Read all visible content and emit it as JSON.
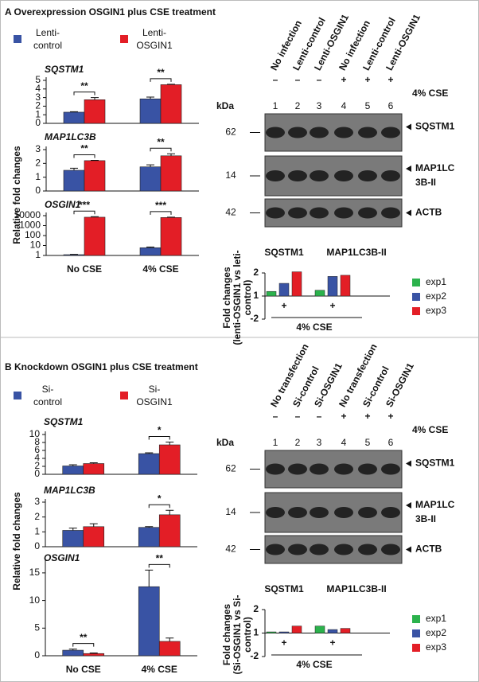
{
  "panels": [
    {
      "title": "A Overexpression OSGIN1 plus CSE treatment",
      "ylabel": "Relative fold changes",
      "blot": {
        "lanes": [
          "No infection",
          "Lenti-control",
          "Lenti-OSGIN1",
          "No infection",
          "Lenti-control",
          "Lenti-OSGIN1"
        ],
        "treatment": [
          "–",
          "–",
          "–",
          "+",
          "+",
          "+"
        ],
        "treatment_label": "4% CSE",
        "lane_numbers": [
          1,
          2,
          3,
          4,
          5,
          6
        ],
        "kda_label": "kDa",
        "rows": [
          {
            "kda": 62,
            "protein": [
              "SQSTM1"
            ]
          },
          {
            "kda": 14,
            "protein": [
              "MAP1LC",
              "3B-II"
            ]
          },
          {
            "kda": 42,
            "protein": [
              "ACTB"
            ]
          }
        ]
      }
    },
    {
      "title": "B Knockdown OSGIN1 plus CSE treatment",
      "ylabel": "Relative fold changes",
      "blot": {
        "lanes": [
          "No transfection",
          "Si-control",
          "Si-OSGIN1",
          "No transfection",
          "Si-control",
          "Si-OSGIN1"
        ],
        "treatment": [
          "–",
          "–",
          "–",
          "+",
          "+",
          "+"
        ],
        "treatment_label": "4% CSE",
        "lane_numbers": [
          1,
          2,
          3,
          4,
          5,
          6
        ],
        "kda_label": "kDa",
        "rows": [
          {
            "kda": 62,
            "protein": [
              "SQSTM1"
            ]
          },
          {
            "kda": 14,
            "protein": [
              "MAP1LC",
              "3B-II"
            ]
          },
          {
            "kda": 42,
            "protein": [
              "ACTB"
            ]
          }
        ]
      }
    }
  ],
  "chart_data": [
    {
      "type": "bar",
      "title": "SQSTM1",
      "categories": [
        null,
        null
      ],
      "ylim": [
        0,
        5
      ],
      "yticks": [
        0,
        1,
        2,
        3,
        4,
        5
      ],
      "series": [
        {
          "name": "Lenti-control",
          "color": "#3953a4",
          "values": [
            1.3,
            2.85
          ],
          "errors": [
            0.05,
            0.2
          ]
        },
        {
          "name": "Lenti-OSGIN1",
          "color": "#e31e26",
          "values": [
            2.75,
            4.5
          ],
          "errors": [
            0.25,
            0.05
          ]
        }
      ],
      "annotations": [
        "**",
        "**"
      ]
    },
    {
      "type": "bar",
      "title": "MAP1LC3B",
      "categories": [
        null,
        null
      ],
      "ylim": [
        0,
        3
      ],
      "yticks": [
        0,
        1,
        2,
        3
      ],
      "series": [
        {
          "color": "#3953a4",
          "values": [
            1.5,
            1.75
          ],
          "errors": [
            0.15,
            0.15
          ]
        },
        {
          "color": "#e31e26",
          "values": [
            2.2,
            2.55
          ],
          "errors": [
            0.02,
            0.15
          ]
        }
      ],
      "annotations": [
        "**",
        "**"
      ]
    },
    {
      "type": "bar",
      "title": "OSGIN1",
      "categories": [
        "No CSE",
        "4% CSE"
      ],
      "log_scale": true,
      "ylim": [
        1,
        10000
      ],
      "yticks": [
        1,
        10,
        100,
        1000,
        10000
      ],
      "series": [
        {
          "color": "#3953a4",
          "values": [
            1.2,
            6
          ],
          "errors": [
            0.1,
            1
          ]
        },
        {
          "color": "#e31e26",
          "values": [
            7000,
            6500
          ],
          "errors": [
            1000,
            500
          ]
        }
      ],
      "annotations": [
        "***",
        "***"
      ]
    },
    {
      "type": "bar",
      "categories": [
        "SQSTM1",
        "MAP1LC3B-II"
      ],
      "x_marks": [
        "+",
        "+"
      ],
      "xlabel": "4% CSE",
      "ylabel": [
        "Fold changes",
        "(lenti-OSGIN1 vs leti-",
        "control)"
      ],
      "ylim": [
        -2,
        2
      ],
      "yticks": [
        -2,
        1,
        2
      ],
      "baseline": 1,
      "series": [
        {
          "name": "exp1",
          "color": "#2bb24c",
          "values": [
            1.2,
            1.25
          ]
        },
        {
          "name": "exp2",
          "color": "#3953a4",
          "values": [
            1.55,
            1.85
          ]
        },
        {
          "name": "exp3",
          "color": "#e31e26",
          "values": [
            2.05,
            1.9
          ]
        }
      ]
    },
    {
      "type": "bar",
      "title": "SQSTM1",
      "categories": [
        null,
        null
      ],
      "ylim": [
        0,
        10
      ],
      "yticks": [
        0,
        2,
        4,
        6,
        8,
        10
      ],
      "series": [
        {
          "name": "Si-control",
          "color": "#3953a4",
          "values": [
            2.1,
            5.2
          ],
          "errors": [
            0.3,
            0.2
          ]
        },
        {
          "name": "Si-OSGIN1",
          "color": "#e31e26",
          "values": [
            2.7,
            7.4
          ],
          "errors": [
            0.2,
            0.7
          ]
        }
      ],
      "annotations": [
        null,
        "*"
      ]
    },
    {
      "type": "bar",
      "title": "MAP1LC3B",
      "categories": [
        null,
        null
      ],
      "ylim": [
        0,
        3
      ],
      "yticks": [
        0,
        1,
        2,
        3
      ],
      "series": [
        {
          "color": "#3953a4",
          "values": [
            1.1,
            1.3
          ],
          "errors": [
            0.15,
            0.05
          ]
        },
        {
          "color": "#e31e26",
          "values": [
            1.35,
            2.15
          ],
          "errors": [
            0.2,
            0.3
          ]
        }
      ],
      "annotations": [
        null,
        "*"
      ]
    },
    {
      "type": "bar",
      "title": "OSGIN1",
      "categories": [
        "No CSE",
        "4% CSE"
      ],
      "ylim": [
        0,
        17
      ],
      "yticks": [
        0,
        5,
        10,
        15
      ],
      "series": [
        {
          "color": "#3953a4",
          "values": [
            1.0,
            12.5
          ],
          "errors": [
            0.2,
            3
          ]
        },
        {
          "color": "#e31e26",
          "values": [
            0.4,
            2.6
          ],
          "errors": [
            0.1,
            0.6
          ]
        }
      ],
      "annotations": [
        "**",
        "**"
      ]
    },
    {
      "type": "bar",
      "categories": [
        "SQSTM1",
        "MAP1LC3B-II"
      ],
      "x_marks": [
        "+",
        "+"
      ],
      "xlabel": "4% CSE",
      "ylabel": [
        "Fold changes",
        "(Si-OSGIN1 vs Si-",
        "control)"
      ],
      "ylim": [
        -2,
        2
      ],
      "yticks": [
        -2,
        1,
        2
      ],
      "baseline": 1,
      "series": [
        {
          "name": "exp1",
          "color": "#2bb24c",
          "values": [
            1.05,
            1.3
          ]
        },
        {
          "name": "exp2",
          "color": "#3953a4",
          "values": [
            1.05,
            1.15
          ]
        },
        {
          "name": "exp3",
          "color": "#e31e26",
          "values": [
            1.3,
            1.2
          ]
        }
      ]
    }
  ]
}
